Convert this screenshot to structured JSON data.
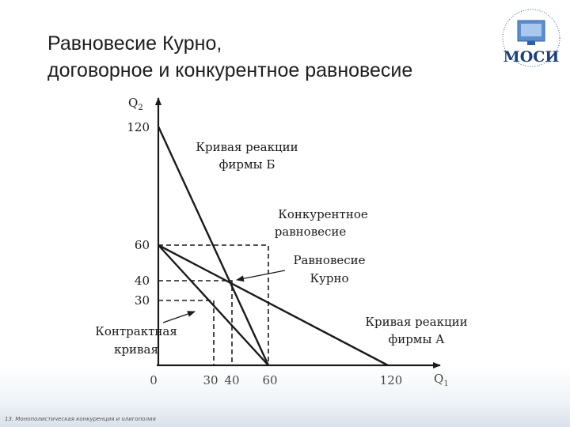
{
  "slide": {
    "title_line1": "Равновесие Курно,",
    "title_line2": "договорное и конкурентное равновесие",
    "logo_text": "МОСИ",
    "footer": "13. Монополистическая конкуренция и олигополия"
  },
  "diagram": {
    "axis_x_label": "Q",
    "axis_x_sub": "1",
    "axis_y_label": "Q",
    "axis_y_sub": "2",
    "x_ticks": [
      "0",
      "30",
      "40",
      "60",
      "120"
    ],
    "y_ticks": [
      "120",
      "60",
      "40",
      "30"
    ],
    "labels": {
      "reaction_b_1": "Кривая реакции",
      "reaction_b_2": "фирмы Б",
      "competitive_1": "Конкурентное",
      "competitive_2": "равновесие",
      "cournot_1": "Равновесие",
      "cournot_2": "Курно",
      "contract_1": "Контрактная",
      "contract_2": "кривая",
      "reaction_a_1": "Кривая реакции",
      "reaction_a_2": "фирмы А"
    },
    "colors": {
      "line": "#1a1a1a",
      "background": "#ffffff",
      "footer": "#d7dee8"
    }
  },
  "chart_data": {
    "type": "line",
    "xlim": [
      0,
      120
    ],
    "ylim": [
      0,
      120
    ],
    "series": [
      {
        "name": "Кривая реакции фирмы Б",
        "x": [
          0,
          60
        ],
        "y": [
          120,
          0
        ]
      },
      {
        "name": "Кривая реакции фирмы А",
        "x": [
          0,
          120
        ],
        "y": [
          60,
          0
        ]
      },
      {
        "name": "Контрактная кривая",
        "x": [
          0,
          60
        ],
        "y": [
          60,
          0
        ]
      }
    ],
    "points": [
      {
        "name": "Равновесие Курно",
        "x": 40,
        "y": 40
      },
      {
        "name": "Конкурентное равновесие",
        "x": 60,
        "y": 60
      },
      {
        "name": "Договорное равновесие",
        "x": 30,
        "y": 30
      }
    ]
  }
}
